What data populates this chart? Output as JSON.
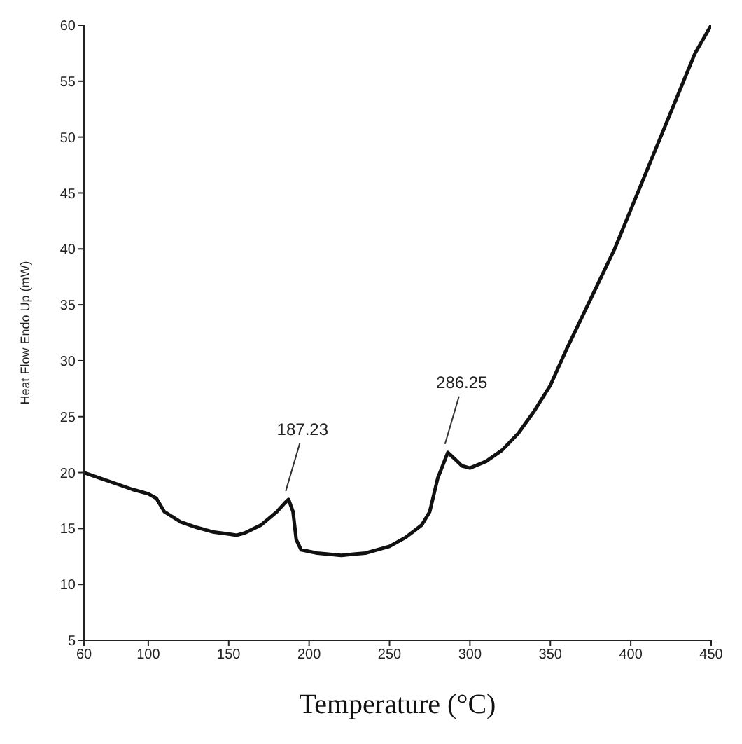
{
  "chart_data": {
    "type": "line",
    "xlabel": "Temperature (°C)",
    "ylabel": "Heat Flow Endo Up (mW)",
    "xlim": [
      60,
      450
    ],
    "xticks": [
      60,
      100,
      150,
      200,
      250,
      300,
      350,
      400,
      450
    ],
    "ylim": [
      5,
      60
    ],
    "yticks": [
      5,
      10,
      15,
      20,
      25,
      30,
      35,
      40,
      45,
      50,
      55,
      60
    ],
    "grid": false,
    "legend": false,
    "marker": "none",
    "line_style": "solid",
    "annotations": [
      {
        "text": "187.23",
        "x": 187.23,
        "y": 17.6
      },
      {
        "text": "286.25",
        "x": 286.25,
        "y": 21.8
      }
    ],
    "series": [
      {
        "color": "#111111",
        "x": [
          60,
          70,
          80,
          90,
          100,
          105,
          110,
          120,
          130,
          140,
          150,
          155,
          160,
          170,
          180,
          185,
          187.23,
          190,
          192,
          195,
          205,
          220,
          235,
          250,
          260,
          270,
          275,
          280,
          286.25,
          290,
          295,
          300,
          310,
          320,
          330,
          340,
          350,
          360,
          370,
          380,
          390,
          400,
          410,
          420,
          430,
          440,
          450
        ],
        "values": [
          20.0,
          19.5,
          19.0,
          18.5,
          18.1,
          17.7,
          16.5,
          15.6,
          15.1,
          14.7,
          14.5,
          14.4,
          14.6,
          15.3,
          16.5,
          17.3,
          17.6,
          16.5,
          14.0,
          13.1,
          12.8,
          12.6,
          12.8,
          13.4,
          14.2,
          15.3,
          16.5,
          19.5,
          21.8,
          21.3,
          20.6,
          20.4,
          21.0,
          22.0,
          23.5,
          25.5,
          27.8,
          31.0,
          34.0,
          37.0,
          40.0,
          43.5,
          47.0,
          50.5,
          54.0,
          57.5,
          60.0
        ]
      }
    ]
  }
}
